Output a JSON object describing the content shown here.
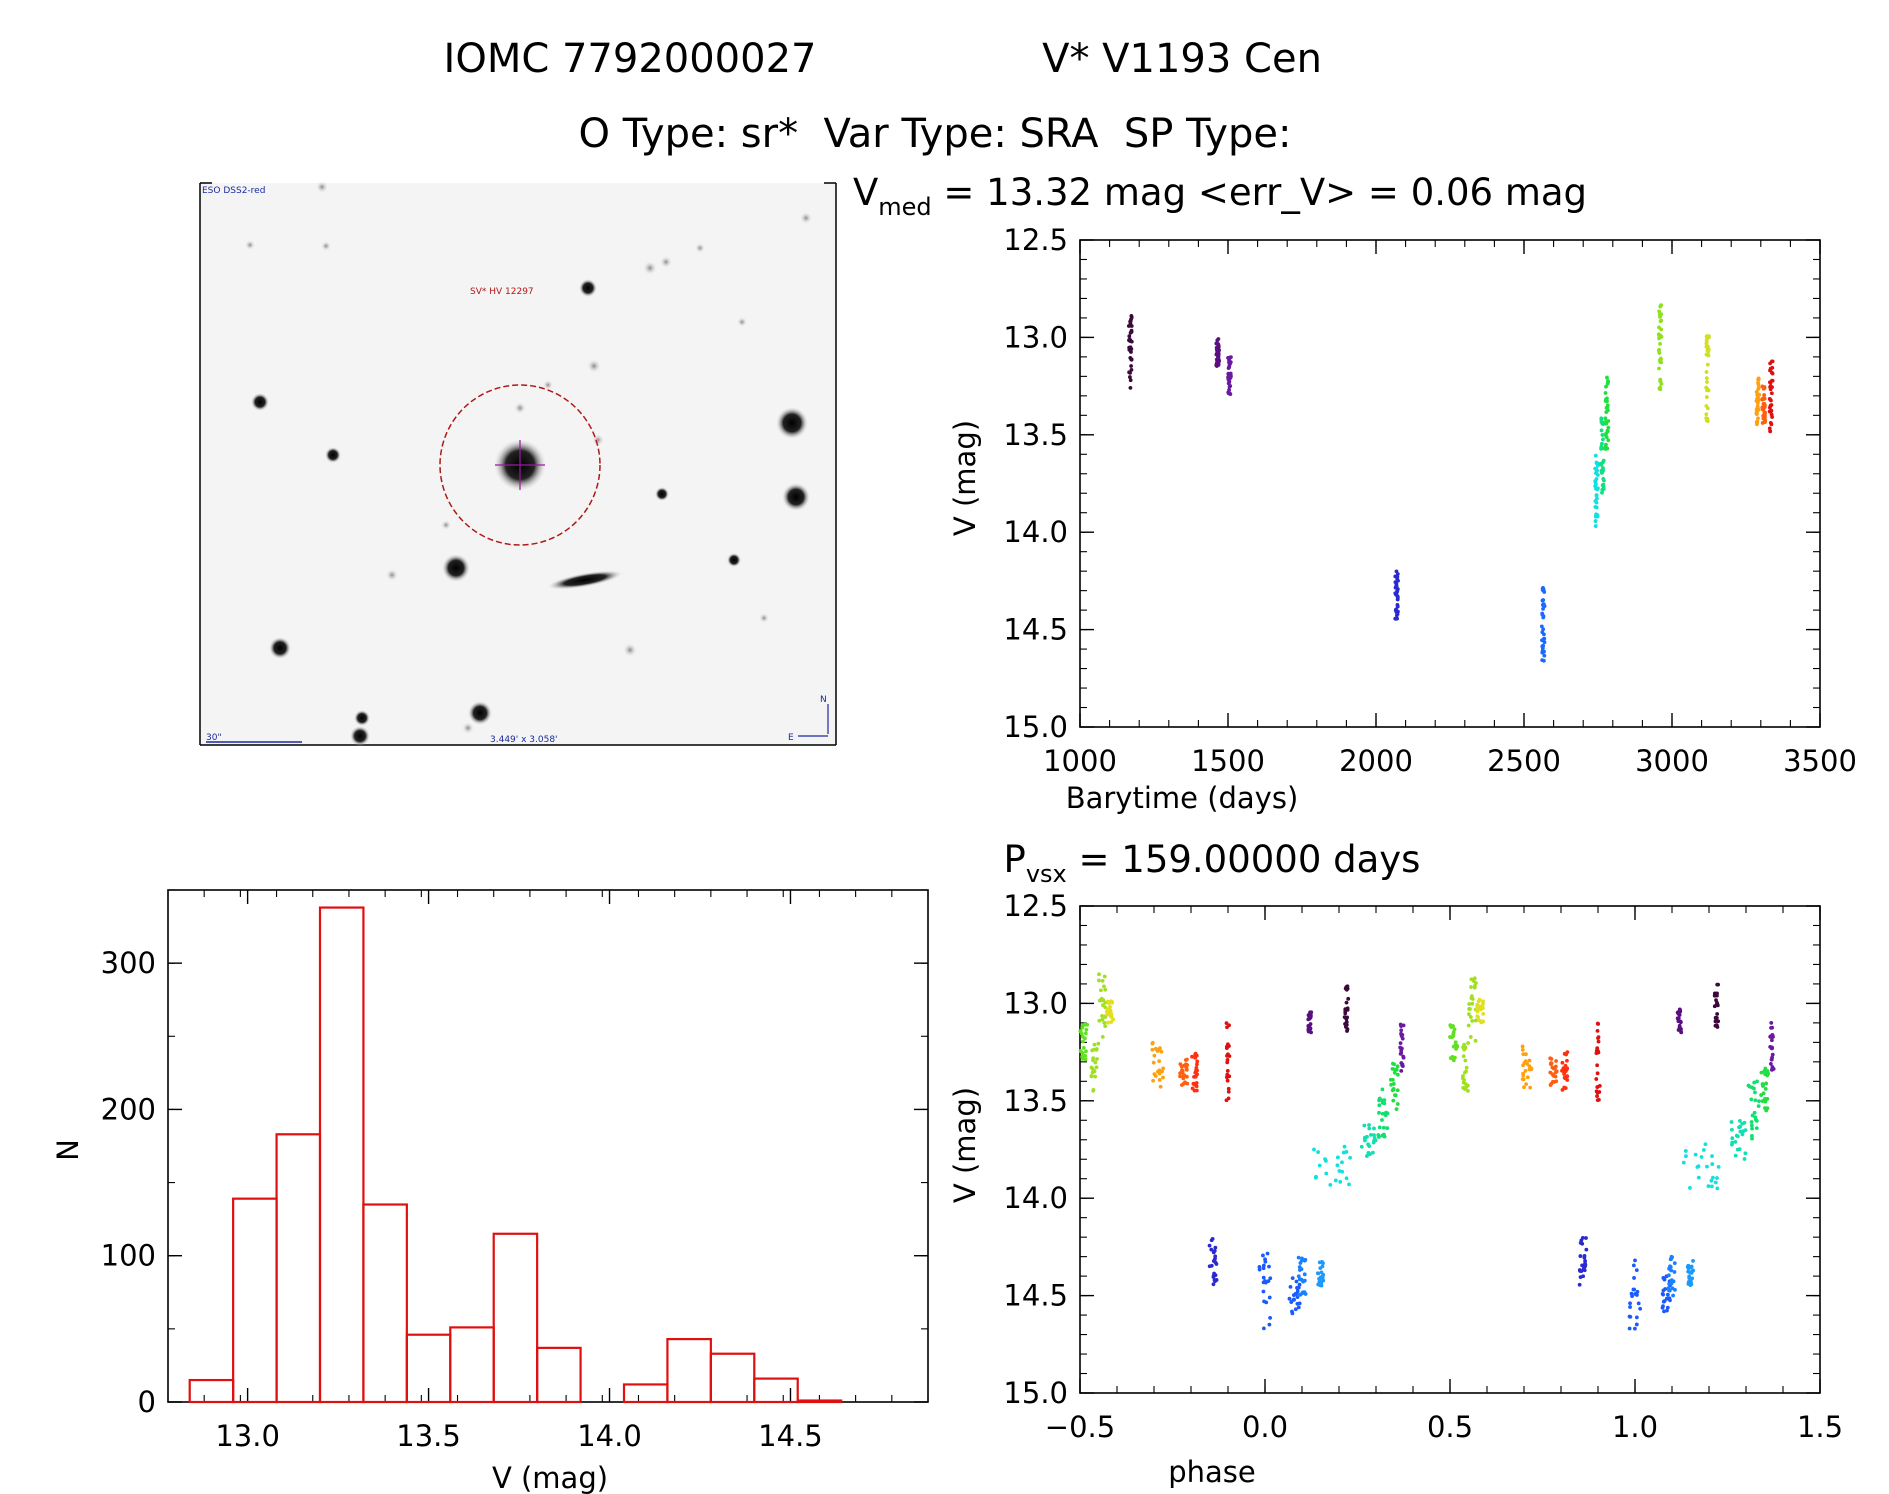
{
  "header": {
    "line1_left": "IOMC 7792000027",
    "line1_right": "V* V1193 Cen",
    "line2": "O Type: sr*  Var Type: SRA  SP Type:"
  },
  "finder_image": {
    "survey_label": "ESO DSS2-red",
    "object_label": "SV* HV 12297",
    "scale_label": "30\"",
    "fov_label": "3.449' x 3.058'",
    "compass_n": "N",
    "compass_e": "E",
    "colors": {
      "survey_text": "#1a2aa0",
      "marker": "#b01818",
      "crosshair": "#9a1aa0"
    }
  },
  "chart_data": [
    {
      "id": "light_curve",
      "type": "scatter",
      "title_parts": {
        "v": "V",
        "med_sub": "med",
        "middle": " = 13.32 mag <err_V> = 0.06 mag"
      },
      "xlabel": "Barytime (days)",
      "ylabel": "V (mag)",
      "xlim": [
        1000,
        3500
      ],
      "ylim": [
        15.0,
        12.5
      ],
      "y_inverted": true,
      "x_ticks": [
        1000,
        1500,
        2000,
        2500,
        3000,
        3500
      ],
      "y_ticks": [
        12.5,
        13.0,
        13.5,
        14.0,
        14.5,
        15.0
      ],
      "clusters": [
        {
          "x": 1170,
          "ymin": 12.87,
          "ymax": 13.27,
          "color": "#3a0a3a"
        },
        {
          "x": 1465,
          "ymin": 13.0,
          "ymax": 13.15,
          "color": "#5a0f80"
        },
        {
          "x": 1505,
          "ymin": 13.1,
          "ymax": 13.3,
          "color": "#6a1aa0"
        },
        {
          "x": 2070,
          "ymin": 14.2,
          "ymax": 14.45,
          "color": "#2a2ad0"
        },
        {
          "x": 2565,
          "ymin": 14.28,
          "ymax": 14.67,
          "color": "#1a6aff"
        },
        {
          "x": 2745,
          "ymin": 13.6,
          "ymax": 13.97,
          "color": "#10e0e0"
        },
        {
          "x": 2765,
          "ymin": 13.4,
          "ymax": 13.8,
          "color": "#10e080"
        },
        {
          "x": 2780,
          "ymin": 13.2,
          "ymax": 13.6,
          "color": "#20e040"
        },
        {
          "x": 2960,
          "ymin": 12.83,
          "ymax": 13.27,
          "color": "#90e020"
        },
        {
          "x": 3120,
          "ymin": 12.98,
          "ymax": 13.43,
          "color": "#d0e020"
        },
        {
          "x": 3290,
          "ymin": 13.2,
          "ymax": 13.45,
          "color": "#ffa010"
        },
        {
          "x": 3310,
          "ymin": 13.25,
          "ymax": 13.45,
          "color": "#ff6010"
        },
        {
          "x": 3335,
          "ymin": 13.12,
          "ymax": 13.5,
          "color": "#e01010"
        }
      ]
    },
    {
      "id": "phased_curve",
      "type": "scatter",
      "title_parts": {
        "p": "P",
        "vsx_sub": "vsx",
        "middle": " = 159.00000 days"
      },
      "xlabel": "phase",
      "ylabel": "V (mag)",
      "xlim": [
        -0.5,
        1.5
      ],
      "ylim": [
        15.0,
        12.5
      ],
      "y_inverted": true,
      "x_ticks": [
        -0.5,
        0.0,
        0.5,
        1.0,
        1.5
      ],
      "x_tick_labels": [
        "−0.5",
        "0.0",
        "0.5",
        "1.0",
        "1.5"
      ],
      "y_ticks": [
        12.5,
        13.0,
        13.5,
        14.0,
        14.5,
        15.0
      ],
      "clusters": [
        {
          "x": -0.49,
          "w": 0.02,
          "ymin": 13.1,
          "ymax": 13.3,
          "color": "#60e020"
        },
        {
          "x": -0.46,
          "w": 0.02,
          "ymin": 13.2,
          "ymax": 13.45,
          "color": "#a0e020"
        },
        {
          "x": -0.44,
          "w": 0.02,
          "ymin": 12.85,
          "ymax": 13.2,
          "color": "#a0e020"
        },
        {
          "x": -0.42,
          "w": 0.02,
          "ymin": 12.98,
          "ymax": 13.1,
          "color": "#e0e020"
        },
        {
          "x": -0.29,
          "w": 0.03,
          "ymin": 13.2,
          "ymax": 13.45,
          "color": "#ffa010"
        },
        {
          "x": -0.22,
          "w": 0.02,
          "ymin": 13.28,
          "ymax": 13.42,
          "color": "#ff6010"
        },
        {
          "x": -0.19,
          "w": 0.015,
          "ymin": 13.25,
          "ymax": 13.45,
          "color": "#ff3010"
        },
        {
          "x": -0.1,
          "w": 0.01,
          "ymin": 13.1,
          "ymax": 13.5,
          "color": "#e01010"
        },
        {
          "x": -0.14,
          "w": 0.02,
          "ymin": 14.2,
          "ymax": 14.45,
          "color": "#2a2ad0"
        },
        {
          "x": 0.0,
          "w": 0.03,
          "ymin": 14.28,
          "ymax": 14.67,
          "color": "#1a5aff"
        },
        {
          "x": 0.08,
          "w": 0.03,
          "ymin": 14.4,
          "ymax": 14.6,
          "color": "#1a5aff"
        },
        {
          "x": 0.1,
          "w": 0.02,
          "ymin": 14.3,
          "ymax": 14.5,
          "color": "#1a80ff"
        },
        {
          "x": 0.15,
          "w": 0.015,
          "ymin": 14.32,
          "ymax": 14.45,
          "color": "#1a9aff"
        },
        {
          "x": 0.12,
          "w": 0.01,
          "ymin": 13.03,
          "ymax": 13.15,
          "color": "#5a0f80"
        },
        {
          "x": 0.22,
          "w": 0.01,
          "ymin": 12.9,
          "ymax": 13.15,
          "color": "#3a0a3a"
        },
        {
          "x": 0.18,
          "w": 0.1,
          "ymin": 13.72,
          "ymax": 13.95,
          "color": "#10e0e0"
        },
        {
          "x": 0.28,
          "w": 0.04,
          "ymin": 13.6,
          "ymax": 13.8,
          "color": "#10e0b0"
        },
        {
          "x": 0.32,
          "w": 0.03,
          "ymin": 13.4,
          "ymax": 13.72,
          "color": "#10e070"
        },
        {
          "x": 0.35,
          "w": 0.02,
          "ymin": 13.3,
          "ymax": 13.55,
          "color": "#20e040"
        },
        {
          "x": 0.37,
          "w": 0.01,
          "ymin": 13.1,
          "ymax": 13.35,
          "color": "#6a1aa0"
        }
      ]
    },
    {
      "id": "histogram",
      "type": "bar",
      "xlabel": "V (mag)",
      "ylabel": "N",
      "xlim": [
        12.78,
        14.88
      ],
      "ylim": [
        0,
        350
      ],
      "x_ticks": [
        13.0,
        13.5,
        14.0,
        14.5
      ],
      "y_ticks": [
        0,
        100,
        200,
        300
      ],
      "bin_edges": [
        12.84,
        12.96,
        13.08,
        13.2,
        13.32,
        13.44,
        13.56,
        13.68,
        13.8,
        13.92,
        14.04,
        14.16,
        14.28,
        14.4,
        14.52,
        14.64,
        14.76
      ],
      "counts": [
        15,
        139,
        183,
        338,
        135,
        46,
        51,
        115,
        37,
        0,
        12,
        43,
        33,
        16,
        1,
        0
      ],
      "bar_color": "#e01010"
    }
  ]
}
